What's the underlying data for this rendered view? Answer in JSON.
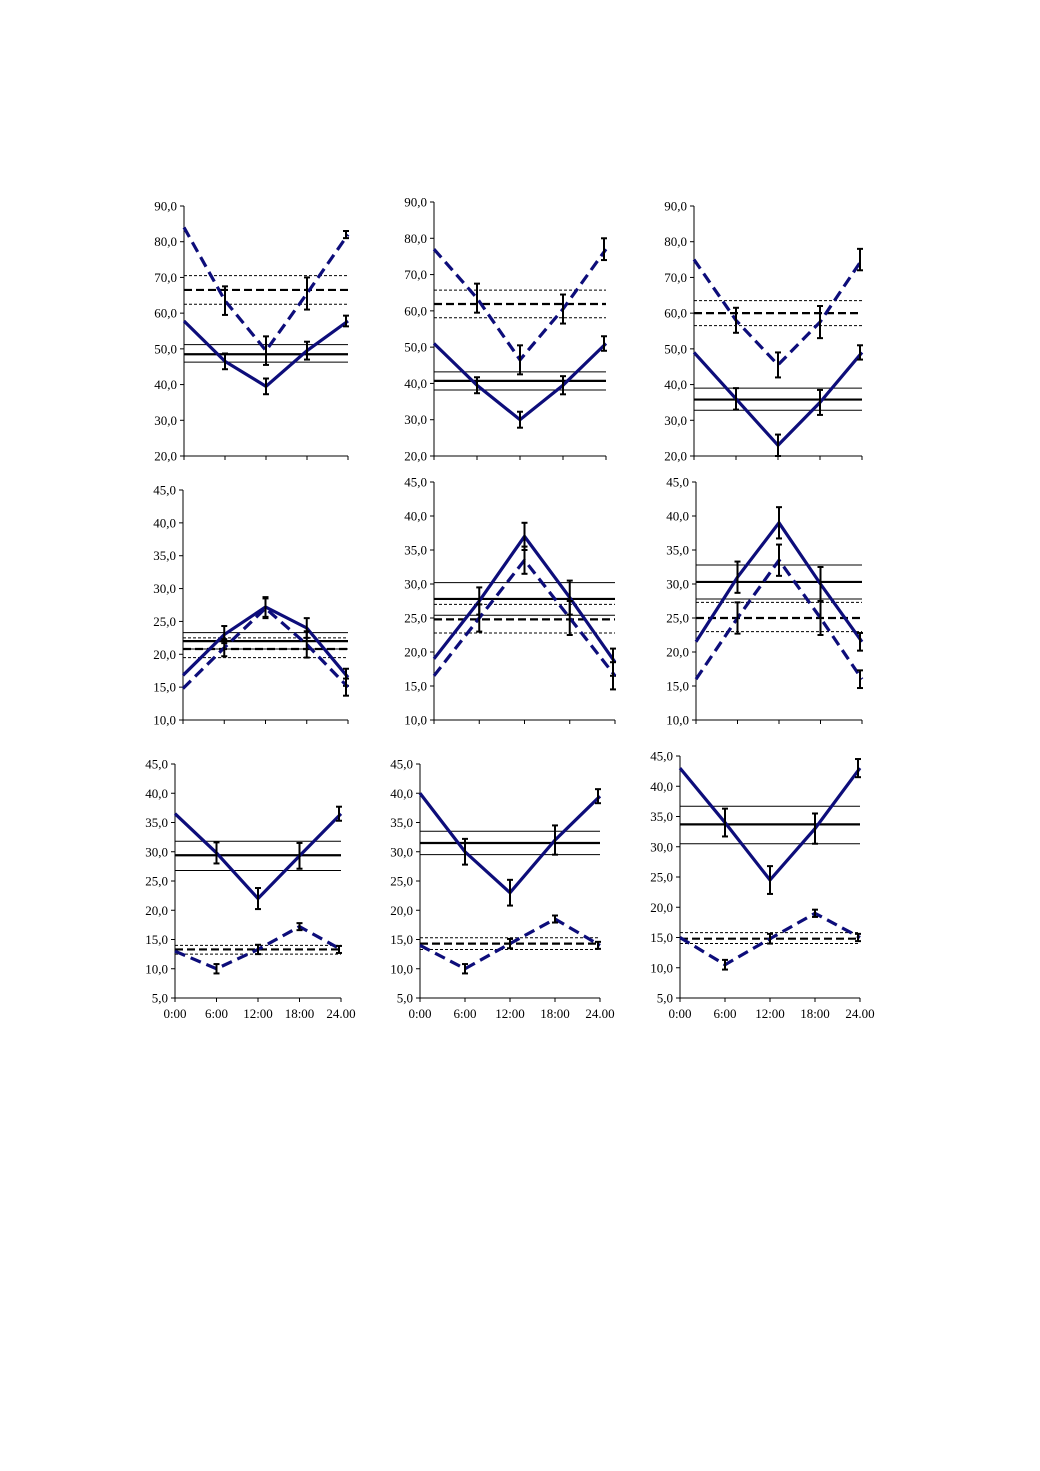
{
  "colors": {
    "series": "#0d0d7a",
    "axis": "#000000",
    "ref": "#000000"
  },
  "chart_data": [
    {
      "type": "line",
      "ylim": [
        20,
        90
      ],
      "yticks": [
        "20,0",
        "30,0",
        "40,0",
        "50,0",
        "60,0",
        "70,0",
        "80,0",
        "90,0"
      ],
      "xticks": [],
      "x": [
        0,
        6,
        12,
        18,
        24
      ],
      "series": [
        {
          "style": "solid",
          "values": [
            57.8,
            46.5,
            39.5,
            49.5,
            57.8
          ],
          "err": [
            0,
            2.2,
            2.2,
            2.5,
            1.5
          ]
        },
        {
          "style": "dashed",
          "values": [
            84,
            63.5,
            49.5,
            65.5,
            82
          ],
          "err": [
            0,
            4,
            4,
            4.5,
            1
          ]
        }
      ],
      "ref_solid": [
        51.2,
        48.5,
        46.3
      ],
      "ref_dashed": [
        70.5,
        66.5,
        62.5
      ]
    },
    {
      "type": "line",
      "ylim": [
        20,
        90
      ],
      "yticks": [
        "20,0",
        "30,0",
        "40,0",
        "50,0",
        "60,0",
        "70,0",
        "80,0",
        "90,0"
      ],
      "xticks": [],
      "x": [
        0,
        6,
        12,
        18,
        24
      ],
      "series": [
        {
          "style": "solid",
          "values": [
            51,
            39.5,
            30,
            39.5,
            51
          ],
          "err": [
            0,
            2.2,
            2.2,
            2.5,
            2
          ]
        },
        {
          "style": "dashed",
          "values": [
            77,
            63.5,
            46.5,
            60.5,
            77
          ],
          "err": [
            0,
            4,
            4,
            4,
            3
          ]
        }
      ],
      "ref_solid": [
        43.2,
        40.7,
        38.2
      ],
      "ref_dashed": [
        65.7,
        61.9,
        58.1
      ]
    },
    {
      "type": "line",
      "ylim": [
        20,
        90
      ],
      "yticks": [
        "20,0",
        "30,0",
        "40,0",
        "50,0",
        "60,0",
        "70,0",
        "80,0",
        "90,0"
      ],
      "xticks": [],
      "x": [
        0,
        6,
        12,
        18,
        24
      ],
      "series": [
        {
          "style": "solid",
          "values": [
            49,
            36,
            23,
            35,
            49
          ],
          "err": [
            0,
            3,
            3,
            3.5,
            2
          ]
        },
        {
          "style": "dashed",
          "values": [
            75,
            58,
            45.5,
            57.5,
            75
          ],
          "err": [
            0,
            3.5,
            3.5,
            4.5,
            3
          ]
        }
      ],
      "ref_solid": [
        39,
        35.8,
        32.8
      ],
      "ref_dashed": [
        63.5,
        60,
        56.5
      ]
    },
    {
      "type": "line",
      "ylim": [
        10,
        45
      ],
      "yticks": [
        "10,0",
        "15,0",
        "20,0",
        "25,0",
        "30,0",
        "35,0",
        "40,0",
        "45,0"
      ],
      "xticks": [],
      "x": [
        0,
        6,
        12,
        18,
        24
      ],
      "series": [
        {
          "style": "solid",
          "values": [
            16.8,
            23,
            27.2,
            24,
            16.5
          ],
          "err": [
            0,
            1.3,
            1.5,
            1.5,
            1.3
          ]
        },
        {
          "style": "dashed",
          "values": [
            14.8,
            21,
            27,
            21.5,
            15
          ],
          "err": [
            0,
            1.3,
            1.5,
            2,
            1.3
          ]
        }
      ],
      "ref_solid": [
        23.3,
        22,
        20.8
      ],
      "ref_dashed": [
        22.5,
        20.8,
        19.5
      ]
    },
    {
      "type": "line",
      "ylim": [
        10,
        45
      ],
      "yticks": [
        "10,0",
        "15,0",
        "20,0",
        "25,0",
        "30,0",
        "35,0",
        "40,0",
        "45,0"
      ],
      "xticks": [],
      "x": [
        0,
        6,
        12,
        18,
        24
      ],
      "series": [
        {
          "style": "solid",
          "values": [
            19,
            27.5,
            37,
            28,
            18.5
          ],
          "err": [
            0,
            2,
            2,
            2.5,
            2
          ]
        },
        {
          "style": "dashed",
          "values": [
            16.5,
            25,
            33.5,
            25,
            16.5
          ],
          "err": [
            0,
            2,
            2,
            2.5,
            2
          ]
        }
      ],
      "ref_solid": [
        30.2,
        27.8,
        25.4
      ],
      "ref_dashed": [
        27,
        24.8,
        22.8
      ]
    },
    {
      "type": "line",
      "ylim": [
        10,
        45
      ],
      "yticks": [
        "10,0",
        "15,0",
        "20,0",
        "25,0",
        "30,0",
        "35,0",
        "40,0",
        "45,0"
      ],
      "xticks": [],
      "x": [
        0,
        6,
        12,
        18,
        24
      ],
      "series": [
        {
          "style": "solid",
          "values": [
            21.5,
            31,
            39,
            30,
            21.5
          ],
          "err": [
            0,
            2.3,
            2.3,
            2.5,
            1.3
          ]
        },
        {
          "style": "dashed",
          "values": [
            16,
            25,
            33.5,
            25,
            16
          ],
          "err": [
            0,
            2.3,
            2.3,
            2.5,
            1.3
          ]
        }
      ],
      "ref_solid": [
        32.8,
        30.3,
        27.8
      ],
      "ref_dashed": [
        27.3,
        25,
        23
      ]
    },
    {
      "type": "line",
      "ylim": [
        5,
        45
      ],
      "yticks": [
        "5,0",
        "10,0",
        "15,0",
        "20,0",
        "25,0",
        "30,0",
        "35,0",
        "40,0",
        "45,0"
      ],
      "xticks": [
        "0:00",
        "6:00",
        "12:00",
        "18:00",
        "24.00"
      ],
      "x": [
        0,
        6,
        12,
        18,
        24
      ],
      "series": [
        {
          "style": "solid",
          "values": [
            36.5,
            29.8,
            22,
            29.3,
            36.5
          ],
          "err": [
            0,
            1.8,
            1.8,
            2.2,
            1.2
          ]
        },
        {
          "style": "dashed",
          "values": [
            13,
            10,
            13.3,
            17.2,
            13.3
          ],
          "err": [
            0,
            0.8,
            0.8,
            0.6,
            0.6
          ]
        }
      ],
      "ref_solid": [
        31.8,
        29.4,
        26.8
      ],
      "ref_dashed": [
        14,
        13.3,
        12.5
      ]
    },
    {
      "type": "line",
      "ylim": [
        5,
        45
      ],
      "yticks": [
        "5,0",
        "10,0",
        "15,0",
        "20,0",
        "25,0",
        "30,0",
        "35,0",
        "40,0",
        "45,0"
      ],
      "xticks": [
        "0:00",
        "6:00",
        "12:00",
        "18:00",
        "24.00"
      ],
      "x": [
        0,
        6,
        12,
        18,
        24
      ],
      "series": [
        {
          "style": "solid",
          "values": [
            40,
            30,
            23,
            32,
            39.5
          ],
          "err": [
            0,
            2.2,
            2.2,
            2.5,
            1.2
          ]
        },
        {
          "style": "dashed",
          "values": [
            14,
            10,
            14.3,
            18.5,
            14
          ],
          "err": [
            0,
            0.8,
            0.8,
            0.6,
            0.6
          ]
        }
      ],
      "ref_solid": [
        33.5,
        31.5,
        29.5
      ],
      "ref_dashed": [
        15.3,
        14.3,
        13.3
      ]
    },
    {
      "type": "line",
      "ylim": [
        5,
        45
      ],
      "yticks": [
        "5,0",
        "10,0",
        "15,0",
        "20,0",
        "25,0",
        "30,0",
        "35,0",
        "40,0",
        "45,0"
      ],
      "xticks": [
        "0:00",
        "6:00",
        "12:00",
        "18:00",
        "24.00"
      ],
      "x": [
        0,
        6,
        12,
        18,
        24
      ],
      "series": [
        {
          "style": "solid",
          "values": [
            43,
            34,
            24.5,
            33,
            43
          ],
          "err": [
            0,
            2.3,
            2.3,
            2.5,
            1.5
          ]
        },
        {
          "style": "dashed",
          "values": [
            15,
            10.5,
            14.8,
            19,
            15
          ],
          "err": [
            0,
            0.8,
            0.8,
            0.6,
            0.6
          ]
        }
      ],
      "ref_solid": [
        36.7,
        33.7,
        30.5
      ],
      "ref_dashed": [
        15.8,
        14.8,
        14
      ]
    }
  ]
}
